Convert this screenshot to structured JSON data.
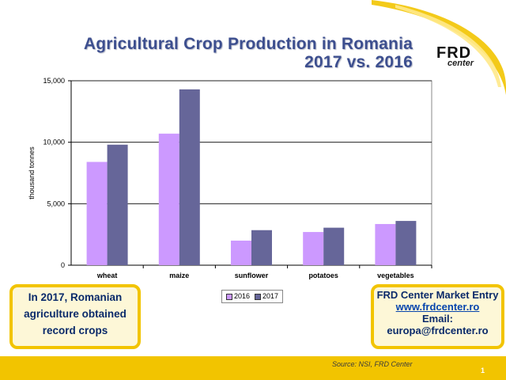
{
  "header": {
    "title_line1": "Agricultural Crop Production in Romania",
    "title_line2": "2017 vs. 2016"
  },
  "logo": {
    "main": "FRD",
    "sub": "center"
  },
  "colors": {
    "accent_yellow": "#f2c400",
    "title_blue": "#3d4f8f",
    "series_2016": "#cc99ff",
    "series_2017": "#666699",
    "box_text": "#0a2a6a"
  },
  "chart_data": {
    "type": "bar",
    "categories": [
      "wheat",
      "maize",
      "sunflower",
      "potatoes",
      "vegetables"
    ],
    "series": [
      {
        "name": "2016",
        "values": [
          8400,
          10700,
          2000,
          2700,
          3350
        ]
      },
      {
        "name": "2017",
        "values": [
          9800,
          14300,
          2850,
          3050,
          3600
        ]
      }
    ],
    "ylabel": "thousand tonnes",
    "ylim": [
      0,
      15000
    ],
    "yticks": [
      "0",
      "5,000",
      "10,000",
      "15,000"
    ],
    "ytick_values": [
      0,
      5000,
      10000,
      15000
    ],
    "grid": true,
    "legend_position": "bottom-center"
  },
  "box_left": {
    "line1": "In 2017, Romanian",
    "line2": "agriculture obtained",
    "line3": "record crops"
  },
  "box_right": {
    "line1": "FRD Center Market Entry",
    "link": "www.frdcenter.ro",
    "line3": "Email:",
    "line4": "europa@frdcenter.ro"
  },
  "footer": {
    "source": "Source: NSI, FRD Center",
    "page_number": "1"
  }
}
